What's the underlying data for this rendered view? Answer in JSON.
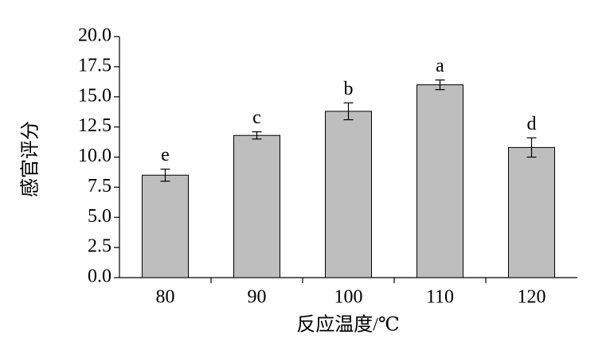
{
  "chart_data": {
    "type": "bar",
    "categories": [
      "80",
      "90",
      "100",
      "110",
      "120"
    ],
    "values": [
      8.5,
      11.8,
      13.8,
      16.0,
      10.8
    ],
    "errors": [
      0.5,
      0.3,
      0.7,
      0.4,
      0.8
    ],
    "letters": [
      "e",
      "c",
      "b",
      "a",
      "d"
    ],
    "color": "#bebebe",
    "xlabel": "反应温度/℃",
    "ylabel": "感官评分",
    "ylim": [
      0,
      20
    ],
    "yticks": [
      {
        "value": 0,
        "label": "0.0"
      },
      2.5,
      {
        "value": 5,
        "label": "5.0"
      },
      7.5,
      {
        "value": 10,
        "label": "10.0"
      },
      12.5,
      {
        "value": 15,
        "label": "15.0"
      },
      17.5,
      {
        "value": 20,
        "label": "20.0"
      }
    ]
  }
}
